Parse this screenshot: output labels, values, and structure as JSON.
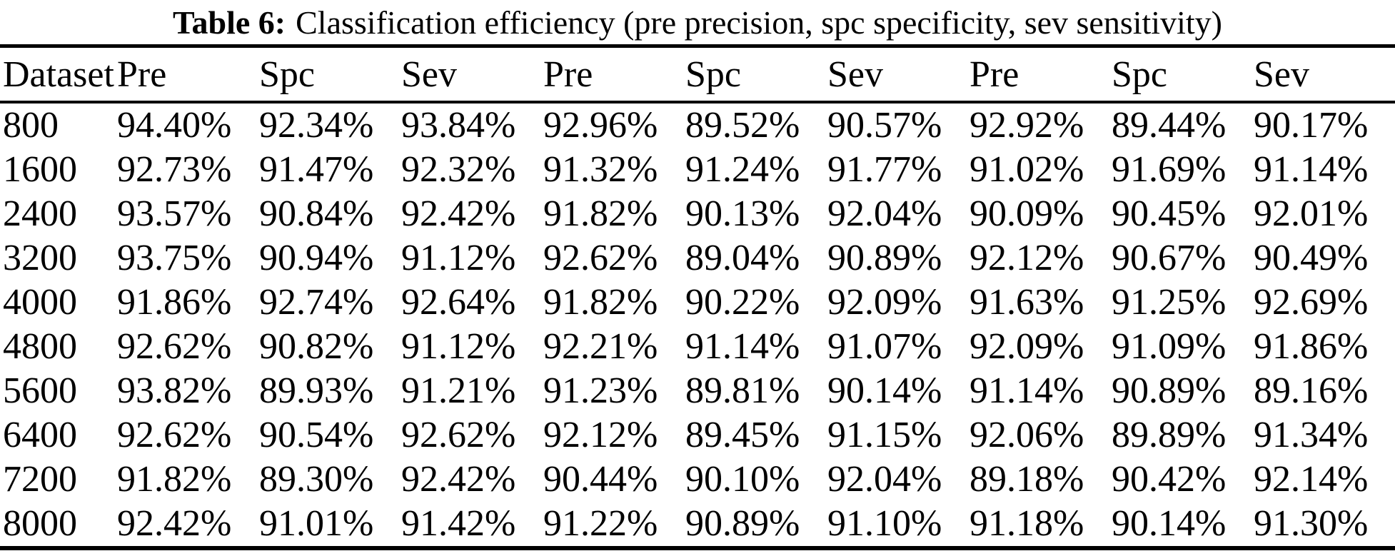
{
  "title": {
    "label": "Table 6:",
    "caption": "Classification efficiency (pre precision, spc specificity, sev sensitivity)"
  },
  "table": {
    "columns": [
      "Dataset",
      "Pre",
      "Spc",
      "Sev",
      "Pre",
      "Spc",
      "Sev",
      "Pre",
      "Spc",
      "Sev"
    ],
    "rows": [
      {
        "dataset": "800",
        "values": [
          "94.40%",
          "92.34%",
          "93.84%",
          "92.96%",
          "89.52%",
          "90.57%",
          "92.92%",
          "89.44%",
          "90.17%"
        ]
      },
      {
        "dataset": "1600",
        "values": [
          "92.73%",
          "91.47%",
          "92.32%",
          "91.32%",
          "91.24%",
          "91.77%",
          "91.02%",
          "91.69%",
          "91.14%"
        ]
      },
      {
        "dataset": "2400",
        "values": [
          "93.57%",
          "90.84%",
          "92.42%",
          "91.82%",
          "90.13%",
          "92.04%",
          "90.09%",
          "90.45%",
          "92.01%"
        ]
      },
      {
        "dataset": "3200",
        "values": [
          "93.75%",
          "90.94%",
          "91.12%",
          "92.62%",
          "89.04%",
          "90.89%",
          "92.12%",
          "90.67%",
          "90.49%"
        ]
      },
      {
        "dataset": "4000",
        "values": [
          "91.86%",
          "92.74%",
          "92.64%",
          "91.82%",
          "90.22%",
          "92.09%",
          "91.63%",
          "91.25%",
          "92.69%"
        ]
      },
      {
        "dataset": "4800",
        "values": [
          "92.62%",
          "90.82%",
          "91.12%",
          "92.21%",
          "91.14%",
          "91.07%",
          "92.09%",
          "91.09%",
          "91.86%"
        ]
      },
      {
        "dataset": "5600",
        "values": [
          "93.82%",
          "89.93%",
          "91.21%",
          "91.23%",
          "89.81%",
          "90.14%",
          "91.14%",
          "90.89%",
          "89.16%"
        ]
      },
      {
        "dataset": "6400",
        "values": [
          "92.62%",
          "90.54%",
          "92.62%",
          "92.12%",
          "89.45%",
          "91.15%",
          "92.06%",
          "89.89%",
          "91.34%"
        ]
      },
      {
        "dataset": "7200",
        "values": [
          "91.82%",
          "89.30%",
          "92.42%",
          "90.44%",
          "90.10%",
          "92.04%",
          "89.18%",
          "90.42%",
          "92.14%"
        ]
      },
      {
        "dataset": "8000",
        "values": [
          "92.42%",
          "91.01%",
          "91.42%",
          "91.22%",
          "90.89%",
          "91.10%",
          "91.18%",
          "90.14%",
          "91.30%"
        ]
      }
    ]
  }
}
